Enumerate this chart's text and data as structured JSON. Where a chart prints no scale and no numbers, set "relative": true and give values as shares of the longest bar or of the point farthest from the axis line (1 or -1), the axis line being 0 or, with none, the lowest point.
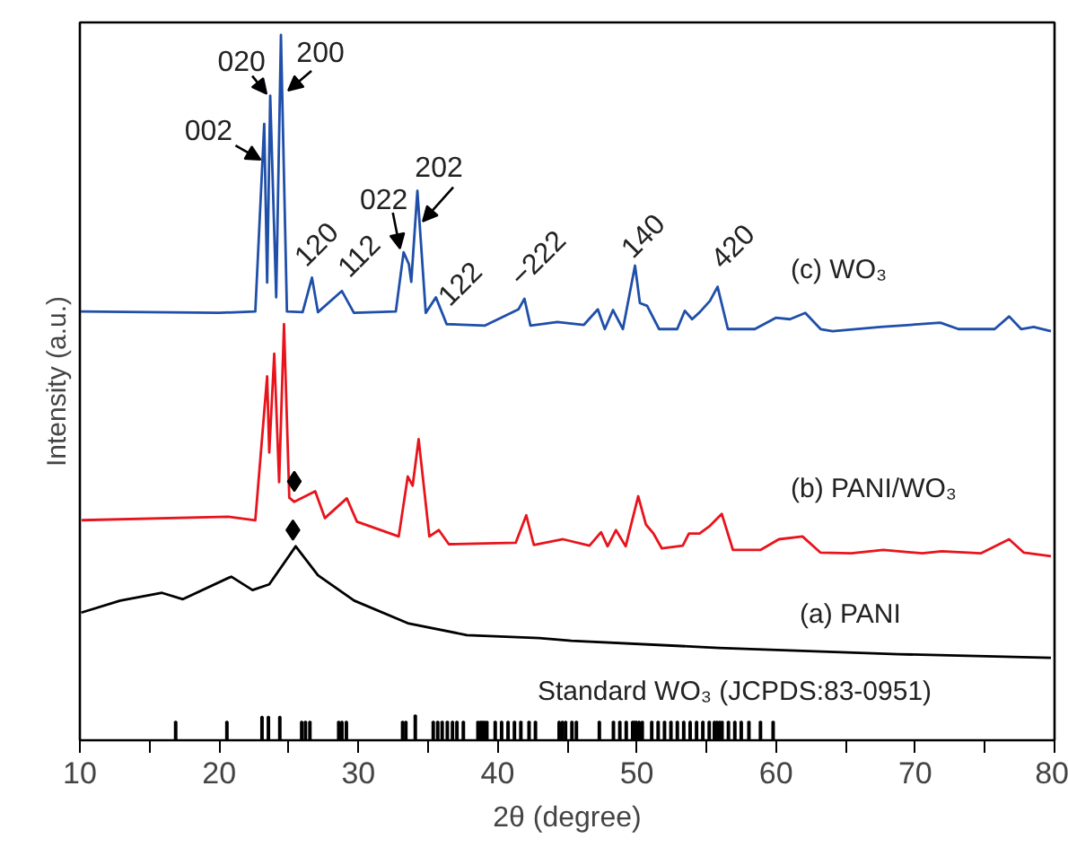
{
  "chart_data": {
    "type": "line",
    "relative": true,
    "xlabel": "2θ (degree)",
    "ylabel": "Intensity (a.u.)",
    "xlim": [
      10,
      80
    ],
    "xticks": [
      10,
      {
        "value": 15,
        "label": null
      },
      20,
      {
        "value": 25,
        "label": null
      },
      30,
      {
        "value": 35,
        "label": null
      },
      40,
      {
        "value": 45,
        "label": null
      },
      50,
      {
        "value": 55,
        "label": null
      },
      60,
      {
        "value": 65,
        "label": null
      },
      70,
      {
        "value": 75,
        "label": null
      },
      80
    ],
    "grid": false,
    "line_style": "solid",
    "series": [
      {
        "name": "(a) PANI",
        "color": "#000000",
        "x": [
          10.1,
          12.9,
          15.9,
          17.4,
          20.87,
          22.4,
          23.6,
          25.5,
          27.1,
          29.7,
          33.55,
          37.8,
          43.0,
          45.3,
          55.9,
          68.8,
          79.74
        ],
        "values": [
          0.181,
          0.198,
          0.209,
          0.2,
          0.232,
          0.213,
          0.221,
          0.275,
          0.234,
          0.198,
          0.166,
          0.149,
          0.145,
          0.141,
          0.131,
          0.122,
          0.117
        ]
      },
      {
        "name": "(b) PANI/WO₃",
        "color": "#e8141c",
        "x": [
          10.13,
          20.66,
          22.6,
          23.45,
          23.6,
          23.96,
          24.31,
          24.66,
          25.04,
          25.4,
          26.9,
          27.6,
          29.17,
          29.9,
          32.9,
          33.55,
          33.9,
          34.33,
          35.1,
          35.78,
          36.5,
          41.3,
          42.06,
          42.6,
          44.7,
          46.6,
          47.43,
          47.9,
          48.5,
          49.2,
          50.1,
          50.65,
          51.2,
          51.8,
          53.3,
          53.74,
          54.5,
          55.25,
          56.1,
          56.9,
          58.9,
          60.2,
          61.9,
          63.2,
          65.4,
          67.7,
          70.5,
          71.9,
          74.7,
          76.74,
          77.8,
          79.74
        ],
        "values": [
          0.312,
          0.317,
          0.312,
          0.516,
          0.408,
          0.548,
          0.366,
          0.59,
          0.344,
          0.338,
          0.353,
          0.315,
          0.343,
          0.31,
          0.289,
          0.374,
          0.361,
          0.427,
          0.289,
          0.298,
          0.278,
          0.28,
          0.319,
          0.277,
          0.285,
          0.276,
          0.295,
          0.275,
          0.298,
          0.275,
          0.346,
          0.306,
          0.293,
          0.272,
          0.276,
          0.293,
          0.293,
          0.304,
          0.321,
          0.27,
          0.27,
          0.285,
          0.289,
          0.266,
          0.265,
          0.27,
          0.265,
          0.268,
          0.265,
          0.285,
          0.266,
          0.261
        ]
      },
      {
        "name": "(c) WO₃",
        "color": "#1f4fa8",
        "x": [
          10.0,
          20.0,
          22.6,
          23.24,
          23.45,
          23.67,
          24.1,
          24.44,
          24.87,
          26.0,
          26.67,
          27.1,
          28.82,
          29.68,
          32.69,
          33.25,
          33.63,
          33.8,
          34.24,
          34.84,
          35.57,
          36.34,
          39.1,
          41.5,
          41.93,
          42.36,
          44.29,
          46.2,
          47.2,
          47.7,
          48.29,
          49.0,
          49.87,
          50.22,
          50.74,
          51.6,
          52.9,
          53.45,
          53.97,
          54.52,
          55.25,
          55.8,
          56.54,
          58.47,
          59.98,
          61.0,
          62.1,
          63.2,
          64.06,
          67.5,
          71.8,
          73.1,
          75.7,
          76.74,
          77.6,
          78.5,
          79.74
        ],
        "values": [
          0.608,
          0.606,
          0.608,
          0.874,
          0.649,
          0.914,
          0.628,
          1,
          0.608,
          0.607,
          0.656,
          0.607,
          0.637,
          0.606,
          0.608,
          0.692,
          0.675,
          0.65,
          0.779,
          0.606,
          0.628,
          0.59,
          0.588,
          0.611,
          0.626,
          0.588,
          0.593,
          0.589,
          0.611,
          0.583,
          0.61,
          0.583,
          0.673,
          0.62,
          0.616,
          0.583,
          0.583,
          0.609,
          0.597,
          0.607,
          0.623,
          0.643,
          0.583,
          0.583,
          0.599,
          0.597,
          0.606,
          0.583,
          0.58,
          0.586,
          0.592,
          0.583,
          0.583,
          0.601,
          0.583,
          0.586,
          0.58
        ]
      },
      {
        "name": "Standard WO₃ (JCPDS:83-0951)",
        "type": "bar",
        "color": "#000000",
        "x": [
          16.88,
          20.56,
          23.08,
          23.54,
          24.36,
          25.93,
          26.2,
          26.52,
          28.59,
          28.82,
          29.14,
          33.18,
          33.41,
          34.09,
          35.38,
          35.7,
          36.02,
          36.39,
          36.76,
          37.08,
          37.54,
          38.59,
          38.77,
          38.91,
          39.05,
          39.23,
          39.83,
          40.29,
          40.75,
          41.21,
          41.67,
          42.26,
          42.72,
          44.42,
          44.65,
          44.88,
          45.34,
          45.66,
          47.31,
          48.32,
          48.78,
          49.24,
          49.7,
          49.83,
          49.97,
          50.16,
          50.39,
          51.07,
          51.53,
          51.99,
          52.45,
          52.91,
          53.37,
          53.83,
          54.29,
          54.74,
          55.2,
          55.57,
          55.75,
          55.94,
          56.12,
          56.58,
          57.04,
          57.5,
          58.05,
          58.88,
          59.79
        ],
        "values": [
          0.026,
          0.026,
          0.033,
          0.033,
          0.033,
          0.026,
          0.026,
          0.026,
          0.026,
          0.026,
          0.026,
          0.026,
          0.026,
          0.035,
          0.026,
          0.026,
          0.026,
          0.026,
          0.026,
          0.026,
          0.026,
          0.026,
          0.026,
          0.026,
          0.026,
          0.026,
          0.026,
          0.026,
          0.026,
          0.026,
          0.026,
          0.026,
          0.026,
          0.026,
          0.026,
          0.026,
          0.026,
          0.026,
          0.026,
          0.026,
          0.026,
          0.026,
          0.026,
          0.026,
          0.026,
          0.026,
          0.026,
          0.026,
          0.026,
          0.026,
          0.026,
          0.026,
          0.026,
          0.026,
          0.026,
          0.026,
          0.026,
          0.026,
          0.026,
          0.026,
          0.026,
          0.026,
          0.026,
          0.026,
          0.026,
          0.026,
          0.026
        ]
      },
      {
        "type": "scatter",
        "marker": "diamond",
        "color": "#000000",
        "x": [
          25.4,
          25.3
        ],
        "values": [
          0.367,
          0.298
        ]
      }
    ],
    "annotations": [
      {
        "text": "002",
        "x": 23.24,
        "y": 0.874
      },
      {
        "text": "020",
        "x": 23.67,
        "y": 0.914
      },
      {
        "text": "200",
        "x": 24.44,
        "y": 1
      },
      {
        "text": "022",
        "x": 33.25,
        "y": 0.692
      },
      {
        "text": "202",
        "x": 34.24,
        "y": 0.779
      },
      {
        "text": "120",
        "x": 26.67,
        "y": 0.656
      },
      {
        "text": "112",
        "x": 28.82,
        "y": 0.637
      },
      {
        "text": "122",
        "x": 35.57,
        "y": 0.628
      },
      {
        "text": "−222",
        "x": 41.93,
        "y": 0.626
      },
      {
        "text": "140",
        "x": 49.87,
        "y": 0.673
      },
      {
        "text": "420",
        "x": 55.8,
        "y": 0.643
      }
    ]
  }
}
